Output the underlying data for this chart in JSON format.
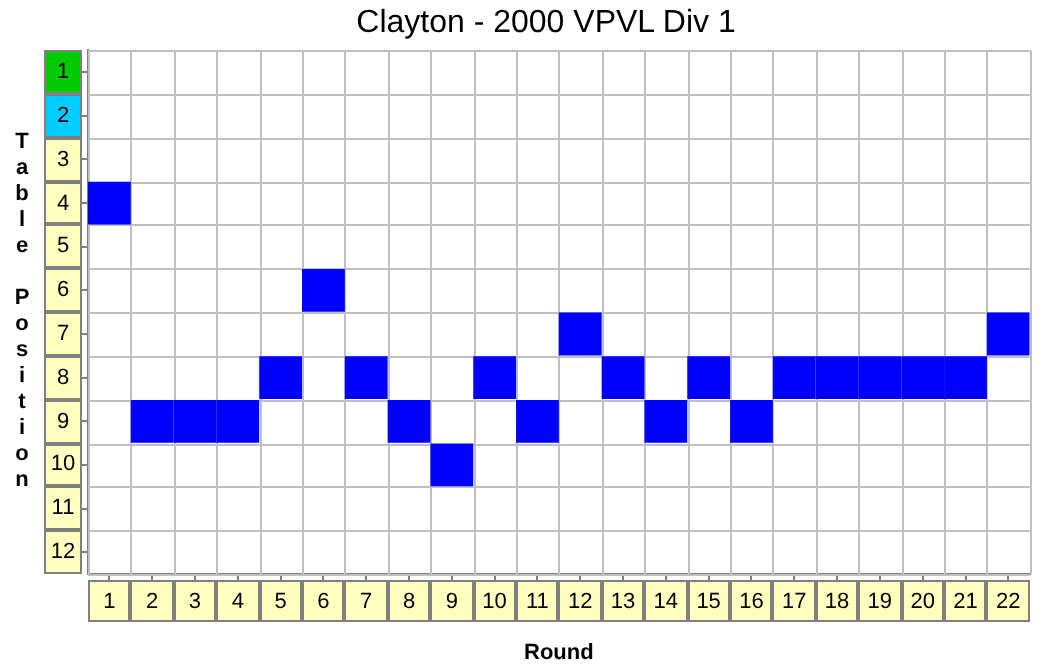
{
  "chart_data": {
    "type": "scatter",
    "title": "Clayton - 2000 VPVL Div 1",
    "xlabel": "Round",
    "ylabel": "Table Position",
    "categories": [
      "1",
      "2",
      "3",
      "4",
      "5",
      "6",
      "7",
      "8",
      "9",
      "10",
      "11",
      "12",
      "13",
      "14",
      "15",
      "16",
      "17",
      "18",
      "19",
      "20",
      "21",
      "22"
    ],
    "series": [
      {
        "color": "#0000ff",
        "values": [
          4,
          9,
          9,
          9,
          8,
          6,
          8,
          9,
          10,
          8,
          9,
          7,
          8,
          9,
          8,
          9,
          8,
          8,
          8,
          8,
          8,
          7
        ]
      }
    ],
    "ylim": [
      12.5,
      0.5
    ],
    "yticks": [
      1,
      2,
      3,
      4,
      5,
      6,
      7,
      8,
      9,
      10,
      11,
      12
    ],
    "marker": "square",
    "grid": true,
    "legend": false
  }
}
